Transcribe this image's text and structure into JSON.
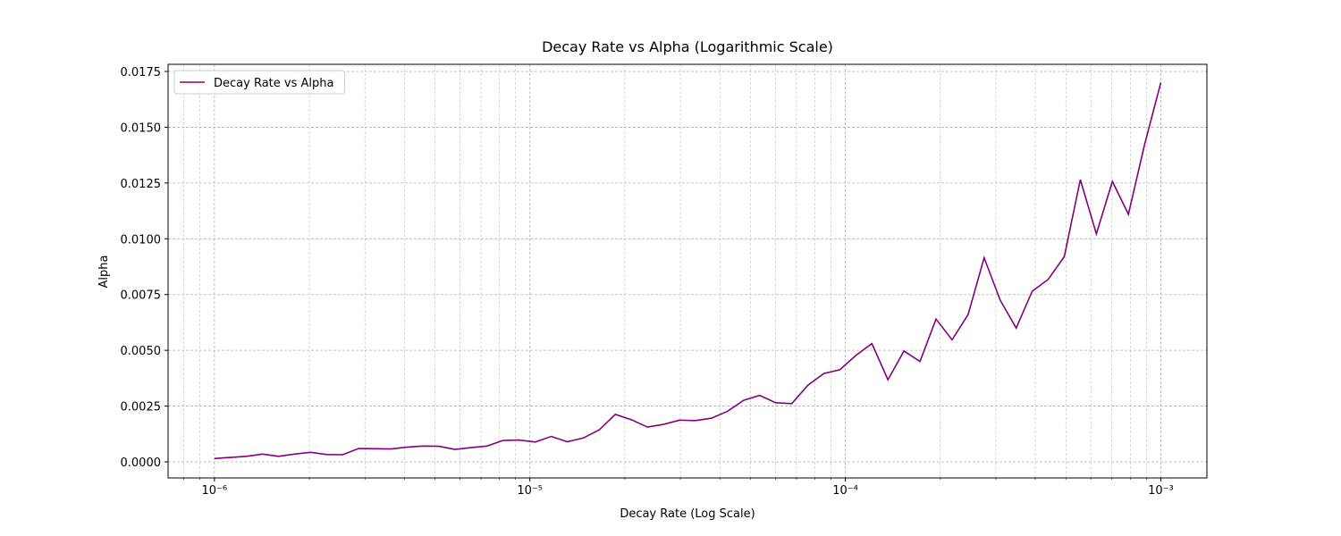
{
  "chart_data": {
    "type": "line",
    "title": "Decay Rate vs Alpha (Logarithmic Scale)",
    "x_label": "Decay Rate (Log Scale)",
    "y_label": "Alpha",
    "x_scale": "log",
    "grid": true,
    "minor_grid": true,
    "legend": "upper left",
    "x": [
      1e-06,
      1.1241e-06,
      1.2637e-06,
      1.4206e-06,
      1.5969e-06,
      1.7952e-06,
      2.018e-06,
      2.2685e-06,
      2.5502e-06,
      2.8668e-06,
      3.2245e-06,
      3.6248e-06,
      4.0748e-06,
      4.5806e-06,
      5.1493e-06,
      5.7885e-06,
      6.5071e-06,
      7.3149e-06,
      8.2231e-06,
      9.2439e-06,
      1.0398e-05,
      1.1689e-05,
      1.314e-05,
      1.4771e-05,
      1.6605e-05,
      1.8666e-05,
      2.0984e-05,
      2.3589e-05,
      2.6517e-05,
      2.9809e-05,
      3.351e-05,
      3.767e-05,
      4.2347e-05,
      4.7604e-05,
      5.3513e-05,
      6.0157e-05,
      6.7625e-05,
      7.602e-05,
      8.5457e-05,
      9.6068e-05,
      0.00010799,
      0.0001214,
      0.00013647,
      0.00015341,
      0.00017245,
      0.00019386,
      0.00021793,
      0.00024498,
      0.0002754,
      0.00030959,
      0.00034802,
      0.00039122,
      0.00043979,
      0.00049439,
      0.00055576,
      0.00062475,
      0.00070231,
      0.0007895,
      0.0008875,
      0.001
    ],
    "series": [
      {
        "name": "Decay Rate vs Alpha",
        "color": "#800080",
        "values": [
          0.00015,
          0.0002,
          0.00025,
          0.00035,
          0.00025,
          0.00035,
          0.00043,
          0.00033,
          0.00032,
          0.0006,
          0.00059,
          0.00058,
          0.00066,
          0.00071,
          0.0007,
          0.00056,
          0.00064,
          0.00071,
          0.00096,
          0.00098,
          0.00089,
          0.00114,
          0.0009,
          0.00107,
          0.00144,
          0.00213,
          0.00189,
          0.00156,
          0.00168,
          0.00187,
          0.00185,
          0.00196,
          0.00227,
          0.00276,
          0.00298,
          0.00265,
          0.00261,
          0.00343,
          0.00396,
          0.00413,
          0.00477,
          0.0053,
          0.00368,
          0.00497,
          0.0045,
          0.0064,
          0.00547,
          0.0066,
          0.00915,
          0.00725,
          0.006,
          0.00765,
          0.00818,
          0.0092,
          0.01265,
          0.01022,
          0.01257,
          0.0111,
          0.0142,
          0.017
        ]
      }
    ],
    "xlim": [
      7.13e-07,
      0.0014
    ],
    "xticks": [
      {
        "value": 1e-06,
        "label": "10⁻⁶"
      },
      {
        "value": 1e-05,
        "label": "10⁻⁵"
      },
      {
        "value": 0.0001,
        "label": "10⁻⁴"
      },
      {
        "value": 0.001,
        "label": "10⁻³"
      }
    ],
    "ylim": [
      -0.00072,
      0.01782
    ],
    "yticks": [
      {
        "value": 0,
        "label": "0.0000"
      },
      {
        "value": 0.0025,
        "label": "0.0025"
      },
      {
        "value": 0.005,
        "label": "0.0050"
      },
      {
        "value": 0.0075,
        "label": "0.0075"
      },
      {
        "value": 0.01,
        "label": "0.0100"
      },
      {
        "value": 0.0125,
        "label": "0.0125"
      },
      {
        "value": 0.015,
        "label": "0.0150"
      },
      {
        "value": 0.0175,
        "label": "0.0175"
      }
    ]
  }
}
